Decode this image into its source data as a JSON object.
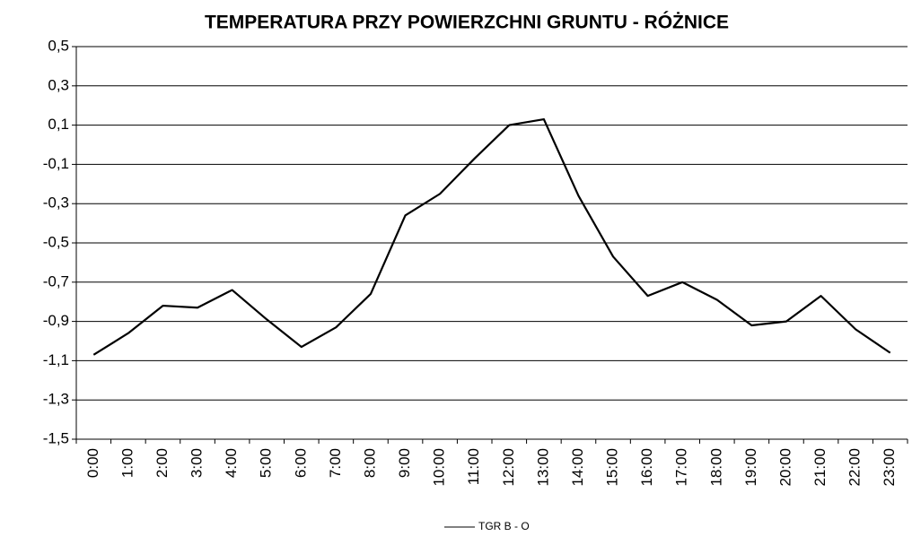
{
  "chart_data": {
    "type": "line",
    "title": "TEMPERATURA PRZY POWIERZCHNI GRUNTU - RÓŻNICE",
    "categories": [
      "0:00",
      "1:00",
      "2:00",
      "3:00",
      "4:00",
      "5:00",
      "6:00",
      "7:00",
      "8:00",
      "9:00",
      "10:00",
      "11:00",
      "12:00",
      "13:00",
      "14:00",
      "15:00",
      "16:00",
      "17:00",
      "18:00",
      "19:00",
      "20:00",
      "21:00",
      "22:00",
      "23:00"
    ],
    "series": [
      {
        "name": "TGR B - O",
        "color": "#000000",
        "values": [
          -1.07,
          -0.96,
          -0.82,
          -0.83,
          -0.74,
          -0.89,
          -1.03,
          -0.93,
          -0.76,
          -0.36,
          -0.25,
          -0.07,
          0.1,
          0.13,
          -0.26,
          -0.57,
          -0.77,
          -0.7,
          -0.79,
          -0.92,
          -0.9,
          -0.77,
          -0.94,
          -1.06
        ]
      }
    ],
    "ylim": [
      -1.5,
      0.5
    ],
    "yticks": [
      {
        "value": -1.5,
        "label": "-1,5"
      },
      {
        "value": -1.3,
        "label": "-1,3"
      },
      {
        "value": -1.1,
        "label": "-1,1"
      },
      {
        "value": -0.9,
        "label": "-0,9"
      },
      {
        "value": -0.7,
        "label": "-0,7"
      },
      {
        "value": -0.5,
        "label": "-0,5"
      },
      {
        "value": -0.3,
        "label": "-0,3"
      },
      {
        "value": -0.1,
        "label": "-0,1"
      },
      {
        "value": 0.1,
        "label": "0,1"
      },
      {
        "value": 0.3,
        "label": "0,3"
      },
      {
        "value": 0.5,
        "label": "0,5"
      }
    ],
    "grid": true,
    "legend": "bottom"
  }
}
